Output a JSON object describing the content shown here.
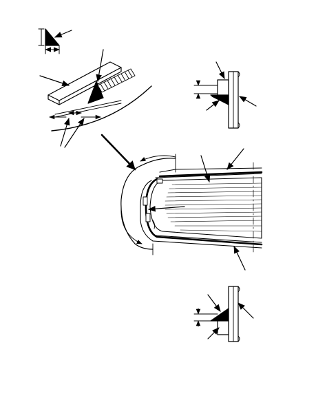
{
  "figure": {
    "kind": "technical-line-drawing",
    "background": "#ffffff",
    "ink": "#000000",
    "callout_style": "arrowhead-leaders",
    "views": [
      {
        "id": "bead-size-detail",
        "description_icon": "triangle-bead-section-icon"
      },
      {
        "id": "glass-edge-bead-detail",
        "description_icon": "bead-on-glass-edge-icon"
      },
      {
        "id": "upper-molding-section",
        "description_icon": "molding-cross-section-icon"
      },
      {
        "id": "windshield-opening-view",
        "description_icon": "windshield-assembly-icon"
      },
      {
        "id": "lower-molding-section",
        "description_icon": "molding-cross-section-icon"
      }
    ]
  }
}
